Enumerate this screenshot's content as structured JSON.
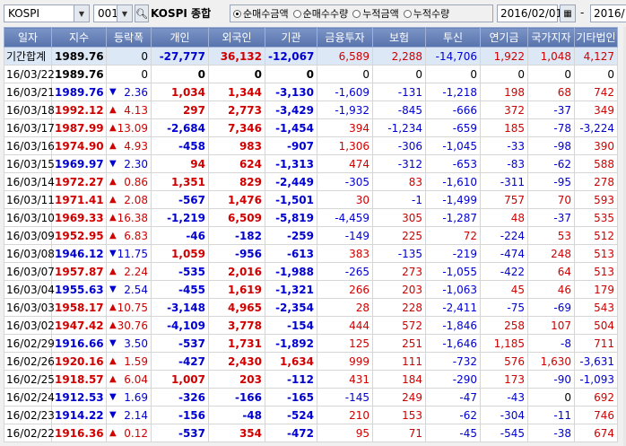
{
  "toolbar": {
    "market": "KOSPI",
    "code": "001",
    "title": "KOSPI 종합",
    "radios": [
      {
        "label": "순매수금액",
        "selected": true
      },
      {
        "label": "순매수수량",
        "selected": false
      },
      {
        "label": "누적금액",
        "selected": false
      },
      {
        "label": "누적수량",
        "selected": false
      }
    ],
    "date_from": "2016/02/01",
    "date_sep": "-",
    "date_to": "2016/"
  },
  "columns": [
    "일자",
    "지수",
    "등락폭",
    "개인",
    "외국인",
    "기관",
    "금융투자",
    "보험",
    "투신",
    "연기금",
    "국가지자",
    "기타법인"
  ],
  "rows": [
    {
      "date": "기간합계",
      "index": "1989.76",
      "dir": "",
      "chg": "0",
      "p": "-27,777",
      "f": "36,132",
      "i": "-12,067",
      "fi": "6,589",
      "ins": "2,288",
      "inv": "-14,706",
      "pen": "1,922",
      "gov": "1,048",
      "oth": "4,127",
      "sum": true
    },
    {
      "date": "16/03/22",
      "index": "1989.76",
      "dir": "",
      "chg": "0",
      "p": "0",
      "f": "0",
      "i": "0",
      "fi": "0",
      "ins": "0",
      "inv": "0",
      "pen": "0",
      "gov": "0",
      "oth": "0"
    },
    {
      "date": "16/03/21",
      "index": "1989.76",
      "dir": "dn",
      "chg": "2.36",
      "p": "1,034",
      "f": "1,344",
      "i": "-3,130",
      "fi": "-1,609",
      "ins": "-131",
      "inv": "-1,218",
      "pen": "198",
      "gov": "68",
      "oth": "742"
    },
    {
      "date": "16/03/18",
      "index": "1992.12",
      "dir": "up",
      "chg": "4.13",
      "p": "297",
      "f": "2,773",
      "i": "-3,429",
      "fi": "-1,932",
      "ins": "-845",
      "inv": "-666",
      "pen": "372",
      "gov": "-37",
      "oth": "349"
    },
    {
      "date": "16/03/17",
      "index": "1987.99",
      "dir": "up",
      "chg": "13.09",
      "p": "-2,684",
      "f": "7,346",
      "i": "-1,454",
      "fi": "394",
      "ins": "-1,234",
      "inv": "-659",
      "pen": "185",
      "gov": "-78",
      "oth": "-3,224"
    },
    {
      "date": "16/03/16",
      "index": "1974.90",
      "dir": "up",
      "chg": "4.93",
      "p": "-458",
      "f": "983",
      "i": "-907",
      "fi": "1,306",
      "ins": "-306",
      "inv": "-1,045",
      "pen": "-33",
      "gov": "-98",
      "oth": "390"
    },
    {
      "date": "16/03/15",
      "index": "1969.97",
      "dir": "dn",
      "chg": "2.30",
      "p": "94",
      "f": "624",
      "i": "-1,313",
      "fi": "474",
      "ins": "-312",
      "inv": "-653",
      "pen": "-83",
      "gov": "-62",
      "oth": "588"
    },
    {
      "date": "16/03/14",
      "index": "1972.27",
      "dir": "up",
      "chg": "0.86",
      "p": "1,351",
      "f": "829",
      "i": "-2,449",
      "fi": "-305",
      "ins": "83",
      "inv": "-1,610",
      "pen": "-311",
      "gov": "-95",
      "oth": "278"
    },
    {
      "date": "16/03/11",
      "index": "1971.41",
      "dir": "up",
      "chg": "2.08",
      "p": "-567",
      "f": "1,476",
      "i": "-1,501",
      "fi": "30",
      "ins": "-1",
      "inv": "-1,499",
      "pen": "757",
      "gov": "70",
      "oth": "593"
    },
    {
      "date": "16/03/10",
      "index": "1969.33",
      "dir": "up",
      "chg": "16.38",
      "p": "-1,219",
      "f": "6,509",
      "i": "-5,819",
      "fi": "-4,459",
      "ins": "305",
      "inv": "-1,287",
      "pen": "48",
      "gov": "-37",
      "oth": "535"
    },
    {
      "date": "16/03/09",
      "index": "1952.95",
      "dir": "up",
      "chg": "6.83",
      "p": "-46",
      "f": "-182",
      "i": "-259",
      "fi": "-149",
      "ins": "225",
      "inv": "72",
      "pen": "-224",
      "gov": "53",
      "oth": "512"
    },
    {
      "date": "16/03/08",
      "index": "1946.12",
      "dir": "dn",
      "chg": "11.75",
      "p": "1,059",
      "f": "-956",
      "i": "-613",
      "fi": "383",
      "ins": "-135",
      "inv": "-219",
      "pen": "-474",
      "gov": "248",
      "oth": "513"
    },
    {
      "date": "16/03/07",
      "index": "1957.87",
      "dir": "up",
      "chg": "2.24",
      "p": "-535",
      "f": "2,016",
      "i": "-1,988",
      "fi": "-265",
      "ins": "273",
      "inv": "-1,055",
      "pen": "-422",
      "gov": "64",
      "oth": "513"
    },
    {
      "date": "16/03/04",
      "index": "1955.63",
      "dir": "dn",
      "chg": "2.54",
      "p": "-455",
      "f": "1,619",
      "i": "-1,321",
      "fi": "266",
      "ins": "203",
      "inv": "-1,063",
      "pen": "45",
      "gov": "46",
      "oth": "179"
    },
    {
      "date": "16/03/03",
      "index": "1958.17",
      "dir": "up",
      "chg": "10.75",
      "p": "-3,148",
      "f": "4,965",
      "i": "-2,354",
      "fi": "28",
      "ins": "228",
      "inv": "-2,411",
      "pen": "-75",
      "gov": "-69",
      "oth": "543"
    },
    {
      "date": "16/03/02",
      "index": "1947.42",
      "dir": "up",
      "chg": "30.76",
      "p": "-4,109",
      "f": "3,778",
      "i": "-154",
      "fi": "444",
      "ins": "572",
      "inv": "-1,846",
      "pen": "258",
      "gov": "107",
      "oth": "504"
    },
    {
      "date": "16/02/29",
      "index": "1916.66",
      "dir": "dn",
      "chg": "3.50",
      "p": "-537",
      "f": "1,731",
      "i": "-1,892",
      "fi": "125",
      "ins": "251",
      "inv": "-1,646",
      "pen": "1,185",
      "gov": "-8",
      "oth": "711"
    },
    {
      "date": "16/02/26",
      "index": "1920.16",
      "dir": "up",
      "chg": "1.59",
      "p": "-427",
      "f": "2,430",
      "i": "1,634",
      "fi": "999",
      "ins": "111",
      "inv": "-732",
      "pen": "576",
      "gov": "1,630",
      "oth": "-3,631"
    },
    {
      "date": "16/02/25",
      "index": "1918.57",
      "dir": "up",
      "chg": "6.04",
      "p": "1,007",
      "f": "203",
      "i": "-112",
      "fi": "431",
      "ins": "184",
      "inv": "-290",
      "pen": "173",
      "gov": "-90",
      "oth": "-1,093"
    },
    {
      "date": "16/02/24",
      "index": "1912.53",
      "dir": "dn",
      "chg": "1.69",
      "p": "-326",
      "f": "-166",
      "i": "-165",
      "fi": "-145",
      "ins": "249",
      "inv": "-47",
      "pen": "-43",
      "gov": "0",
      "oth": "692"
    },
    {
      "date": "16/02/23",
      "index": "1914.22",
      "dir": "dn",
      "chg": "2.14",
      "p": "-156",
      "f": "-48",
      "i": "-524",
      "fi": "210",
      "ins": "153",
      "inv": "-62",
      "pen": "-304",
      "gov": "-11",
      "oth": "746"
    },
    {
      "date": "16/02/22",
      "index": "1916.36",
      "dir": "up",
      "chg": "0.12",
      "p": "-537",
      "f": "354",
      "i": "-472",
      "fi": "95",
      "ins": "71",
      "inv": "-45",
      "pen": "-545",
      "gov": "-38",
      "oth": "674"
    }
  ],
  "colors": {
    "up": "#d00000",
    "down": "#0000d0",
    "header": "#6a84bb"
  }
}
